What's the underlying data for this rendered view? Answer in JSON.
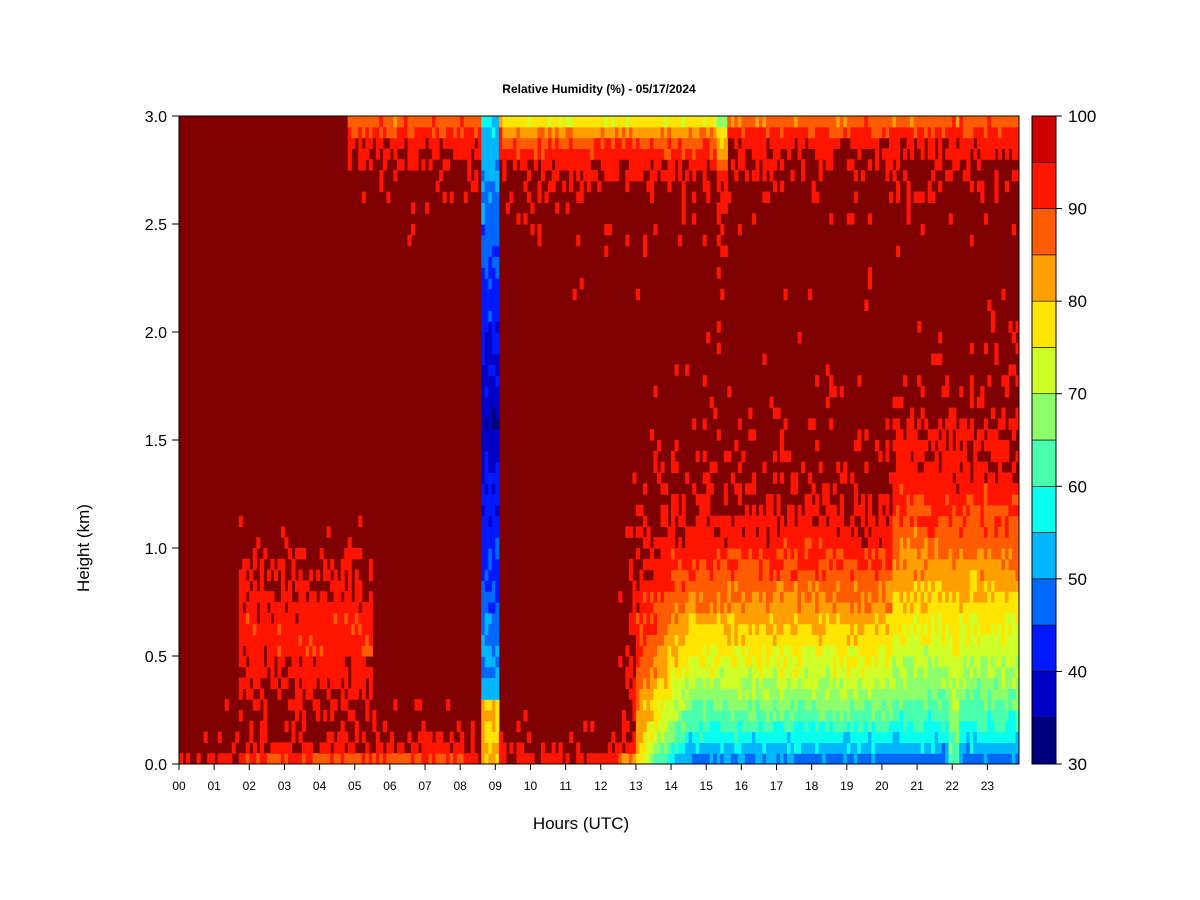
{
  "chart_data": {
    "type": "heatmap",
    "title": "Relative Humidity (%) - 05/17/2024",
    "xlabel": "Hours (UTC)",
    "ylabel": "Height (km)",
    "x_ticks": [
      "00",
      "01",
      "02",
      "03",
      "04",
      "05",
      "06",
      "07",
      "08",
      "09",
      "10",
      "11",
      "12",
      "13",
      "14",
      "15",
      "16",
      "17",
      "18",
      "19",
      "20",
      "21",
      "22",
      "23"
    ],
    "x_range": [
      0,
      23.9
    ],
    "y_ticks": [
      "0.0",
      "0.5",
      "1.0",
      "1.5",
      "2.0",
      "2.5",
      "3.0"
    ],
    "y_range": [
      0,
      3.0
    ],
    "colorbar": {
      "levels": [
        30,
        35,
        40,
        45,
        50,
        55,
        60,
        65,
        70,
        75,
        80,
        85,
        90,
        95,
        100
      ],
      "labels": [
        "30",
        "40",
        "50",
        "60",
        "70",
        "80",
        "90",
        "100"
      ],
      "colors": [
        "#00007F",
        "#0000C6",
        "#0019FF",
        "#0067FF",
        "#00B6FF",
        "#08FFEF",
        "#4AFFAD",
        "#8CFF6B",
        "#CEFF29",
        "#FFE500",
        "#FFA000",
        "#FF5B00",
        "#FF1500",
        "#CF0000",
        "#7F0000"
      ]
    },
    "features": [
      {
        "name": "dry column",
        "x_range": [
          8.6,
          9.1
        ],
        "height_range_km": [
          0.3,
          3.0
        ],
        "rh_percent": 35
      },
      {
        "name": "dry surface layer",
        "x_range": [
          13.5,
          23.9
        ],
        "height_range_km": [
          0.0,
          0.4
        ],
        "rh_percent": 55
      },
      {
        "name": "moist background",
        "rh_percent": 98
      }
    ]
  }
}
